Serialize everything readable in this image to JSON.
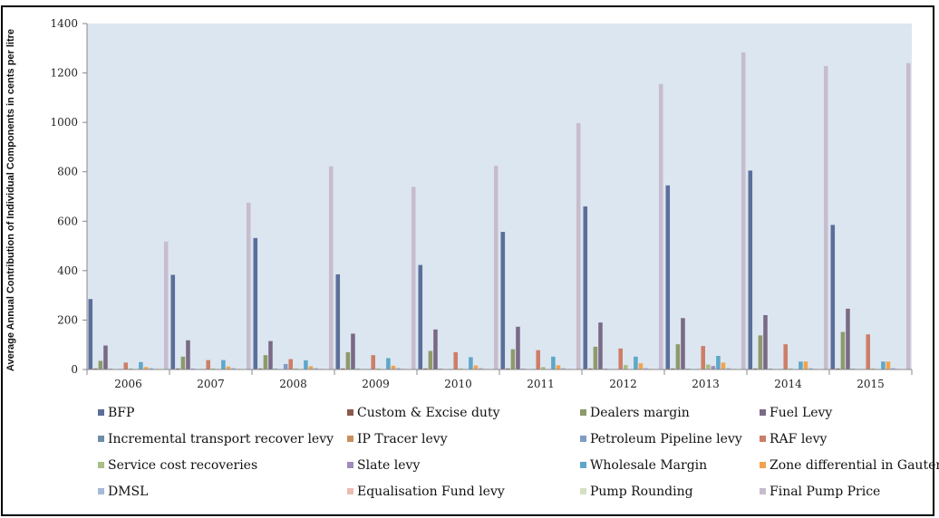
{
  "chart_data": {
    "type": "bar",
    "title": "",
    "xlabel": "",
    "ylabel": "Average Annual Contribution of Individual Components in cents per litre",
    "ylim": [
      0,
      1400
    ],
    "yticks": [
      0,
      200,
      400,
      600,
      800,
      1000,
      1200,
      1400
    ],
    "grid": false,
    "legend_position": "bottom",
    "categories": [
      "2006",
      "2007",
      "2008",
      "2009",
      "2010",
      "2011",
      "2012",
      "2013",
      "2014",
      "2015"
    ],
    "series": [
      {
        "name": "BFP",
        "color": "#5b6f9a",
        "values": [
          285,
          383,
          532,
          385,
          423,
          557,
          660,
          745,
          805,
          585
        ]
      },
      {
        "name": "Custom & Excise duty",
        "color": "#8c5a4e",
        "values": [
          4,
          4,
          4,
          4,
          4,
          4,
          4,
          4,
          4,
          4
        ]
      },
      {
        "name": "Dealers margin",
        "color": "#8e9a6b",
        "values": [
          35,
          52,
          58,
          70,
          75,
          82,
          92,
          102,
          138,
          152
        ]
      },
      {
        "name": "Fuel Levy",
        "color": "#7a6a86",
        "values": [
          97,
          118,
          115,
          145,
          162,
          173,
          190,
          208,
          220,
          246
        ]
      },
      {
        "name": "Incremental transport recover levy",
        "color": "#6a8fa6",
        "values": [
          3,
          3,
          3,
          3,
          3,
          3,
          3,
          3,
          3,
          3
        ]
      },
      {
        "name": "IP Tracer levy",
        "color": "#c9905e",
        "values": [
          1,
          1,
          1,
          1,
          1,
          1,
          1,
          1,
          1,
          1
        ]
      },
      {
        "name": "Petroleum Pipeline levy",
        "color": "#7f9cc4",
        "values": [
          2,
          2,
          22,
          2,
          2,
          2,
          2,
          2,
          2,
          2
        ]
      },
      {
        "name": "RAF levy",
        "color": "#cd7e68",
        "values": [
          28,
          38,
          42,
          58,
          70,
          78,
          85,
          95,
          102,
          142
        ]
      },
      {
        "name": "Service cost recoveries",
        "color": "#a8bf85",
        "values": [
          4,
          4,
          4,
          4,
          4,
          10,
          18,
          20,
          4,
          4
        ]
      },
      {
        "name": "Slate levy",
        "color": "#a08bba",
        "values": [
          1,
          1,
          1,
          1,
          1,
          1,
          1,
          14,
          1,
          1
        ]
      },
      {
        "name": "Wholesale Margin",
        "color": "#5fa7c8",
        "values": [
          30,
          38,
          37,
          46,
          50,
          52,
          52,
          55,
          32,
          32
        ]
      },
      {
        "name": "Zone differential in Gauteng",
        "color": "#f2a24e",
        "values": [
          10,
          12,
          13,
          15,
          16,
          17,
          25,
          28,
          32,
          32
        ]
      },
      {
        "name": "DMSL",
        "color": "#a7b9d9",
        "values": [
          6,
          6,
          6,
          6,
          6,
          6,
          6,
          6,
          6,
          6
        ]
      },
      {
        "name": "Equalisation Fund levy",
        "color": "#ebbcb0",
        "values": [
          3,
          3,
          3,
          3,
          3,
          3,
          3,
          3,
          3,
          3
        ]
      },
      {
        "name": "Pump Rounding",
        "color": "#d3e0c2",
        "values": [
          1,
          1,
          1,
          1,
          1,
          1,
          1,
          1,
          1,
          1
        ]
      },
      {
        "name": "Final Pump Price",
        "color": "#c7bccd",
        "values": [
          518,
          675,
          822,
          739,
          825,
          997,
          1155,
          1283,
          1228,
          1240
        ]
      }
    ]
  },
  "colors": {
    "plot_background": "#dce6f0",
    "frame": "#000000",
    "axis": "#888888"
  }
}
